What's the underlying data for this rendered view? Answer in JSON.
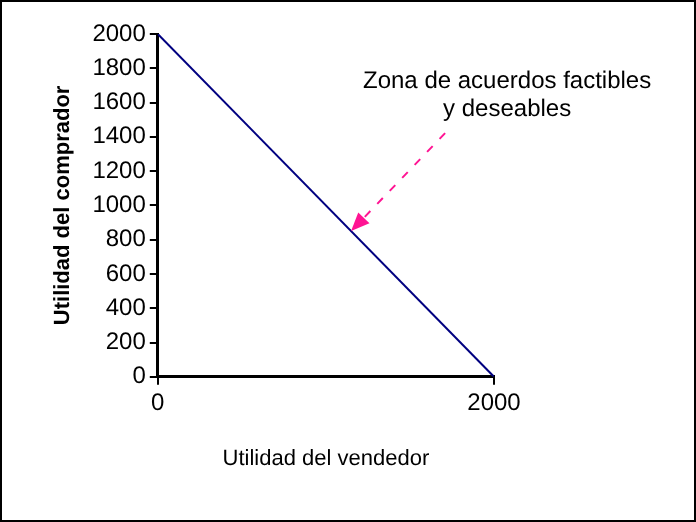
{
  "chart_data": {
    "type": "line",
    "xlabel": "Utilidad del vendedor",
    "ylabel": "Utilidad del comprador",
    "series": [
      {
        "x": [
          0,
          2000
        ],
        "values": [
          2000,
          0
        ],
        "color": "#000080"
      }
    ],
    "xlim": [
      0,
      2000
    ],
    "xticks": [
      0,
      2000
    ],
    "ylim": [
      0,
      2000
    ],
    "yticks": [
      0,
      200,
      400,
      600,
      800,
      1000,
      1200,
      1400,
      1600,
      1800,
      2000
    ],
    "annotations": [
      {
        "text": "Zona de acuerdos factibles y deseables",
        "x": 1150,
        "y": 850
      }
    ],
    "grid": false,
    "legend": false,
    "marker": "none",
    "line_style": "solid"
  }
}
